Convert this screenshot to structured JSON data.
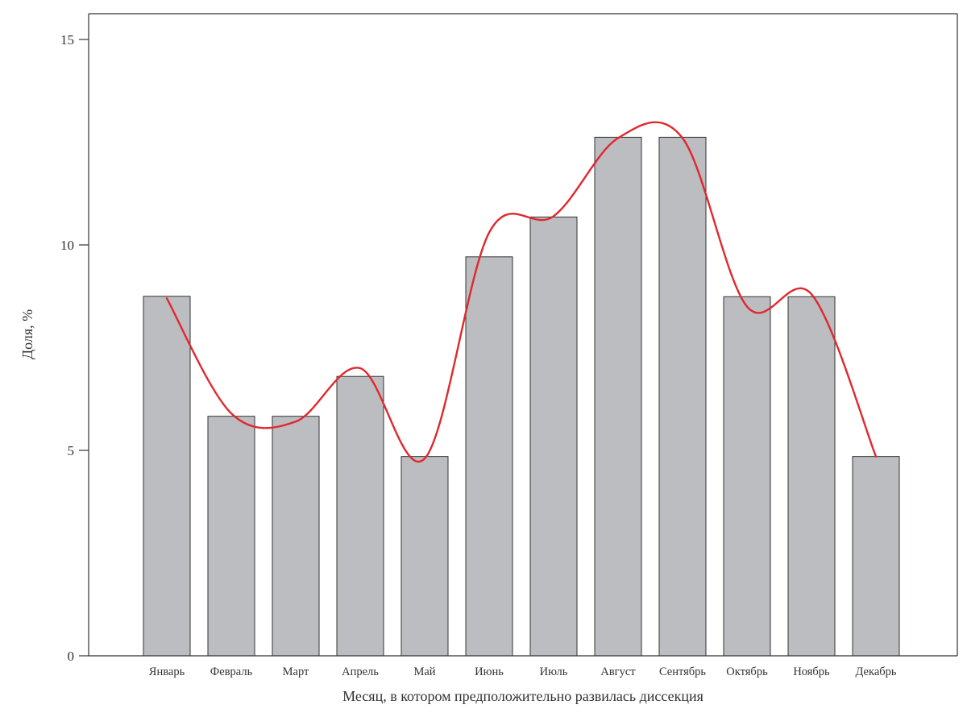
{
  "chart_data": {
    "type": "bar",
    "title": "",
    "xlabel": "Месяц, в котором предположительно развилась диссекция",
    "ylabel": "Доля, %",
    "categories": [
      "Январь",
      "Февраль",
      "Март",
      "Апрель",
      "Май",
      "Июнь",
      "Июль",
      "Август",
      "Сентябрь",
      "Октябрь",
      "Ноябрь",
      "Декабрь"
    ],
    "values": [
      8.75,
      5.83,
      5.83,
      6.8,
      4.85,
      9.71,
      10.68,
      12.62,
      12.62,
      8.74,
      8.74,
      4.85
    ],
    "trend_line": [
      8.7,
      5.9,
      5.7,
      7.0,
      4.8,
      10.3,
      10.7,
      12.6,
      12.6,
      8.5,
      8.8,
      4.85
    ],
    "ylim": [
      0,
      15
    ],
    "yticks": [
      0,
      5,
      10,
      15
    ],
    "ytick_labels": [
      "0",
      "5",
      "10",
      "15"
    ],
    "grid": false,
    "legend": "none",
    "colors": {
      "bar_fill": "#bbbdc0",
      "bar_stroke": "#333333",
      "trend_line": "#e0282d",
      "axis": "#333333"
    }
  }
}
